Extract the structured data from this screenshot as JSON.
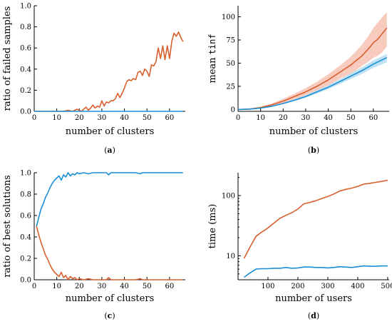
{
  "colors": {
    "orange": "#d95f2e",
    "blue": "#1a8fd6",
    "orange_band": "#f4b9a8",
    "blue_band": "#a8d8f0"
  },
  "chart_data": [
    {
      "id": "a",
      "type": "line",
      "panel_label": "a",
      "xlabel": "number of clusters",
      "ylabel": "ratio of failed samples",
      "xlim": [
        0,
        67
      ],
      "ylim": [
        0,
        1.0
      ],
      "xticks": [
        0,
        10,
        20,
        30,
        40,
        50,
        60
      ],
      "yticks": [
        0,
        0.2,
        0.4,
        0.6,
        0.8,
        1.0
      ],
      "ytick_labels": [
        "0.0",
        "0.2",
        "0.4",
        "0.6",
        "0.8",
        "1.0"
      ],
      "series": [
        {
          "color": "orange",
          "x": [
            0,
            13,
            15,
            17,
            19,
            21,
            22,
            23,
            24,
            25,
            26,
            27,
            28,
            29,
            30,
            31,
            32,
            33,
            34,
            35,
            36,
            37,
            38,
            39,
            40,
            41,
            42,
            43,
            44,
            45,
            46,
            47,
            48,
            49,
            50,
            51,
            52,
            53,
            54,
            55,
            56,
            57,
            58,
            59,
            60,
            61,
            62,
            63,
            64,
            65,
            66
          ],
          "y": [
            0,
            0,
            0.01,
            0.0,
            0.02,
            0.0,
            0.02,
            0.04,
            0.01,
            0.03,
            0.06,
            0.03,
            0.05,
            0.04,
            0.1,
            0.05,
            0.09,
            0.08,
            0.1,
            0.1,
            0.12,
            0.17,
            0.13,
            0.17,
            0.22,
            0.28,
            0.3,
            0.29,
            0.31,
            0.3,
            0.37,
            0.38,
            0.34,
            0.4,
            0.38,
            0.33,
            0.44,
            0.43,
            0.47,
            0.6,
            0.5,
            0.62,
            0.49,
            0.62,
            0.5,
            0.66,
            0.74,
            0.71,
            0.75,
            0.7,
            0.66
          ]
        },
        {
          "color": "blue",
          "x": [
            0,
            66
          ],
          "y": [
            0,
            0
          ]
        }
      ]
    },
    {
      "id": "b",
      "type": "line",
      "panel_label": "b",
      "xlabel": "number of clusters",
      "ylabel": "mean tinf",
      "xlim": [
        0,
        67
      ],
      "ylim": [
        -2,
        112
      ],
      "xticks": [
        0,
        10,
        20,
        30,
        40,
        50,
        60
      ],
      "yticks": [
        0,
        25,
        50,
        75,
        100
      ],
      "series": [
        {
          "color": "orange",
          "x": [
            0,
            5,
            10,
            15,
            20,
            25,
            30,
            35,
            40,
            45,
            50,
            52,
            55,
            58,
            60,
            62,
            64,
            66
          ],
          "y": [
            0,
            0.5,
            2,
            5,
            9,
            14,
            19,
            25,
            32,
            40,
            48,
            52,
            58,
            66,
            72,
            76,
            82,
            88
          ],
          "band_lower": [
            0,
            0.3,
            1.5,
            4,
            7,
            11,
            15,
            20,
            26,
            33,
            39,
            42,
            47,
            52,
            56,
            58,
            62,
            68
          ],
          "band_upper": [
            0,
            0.8,
            3,
            6.5,
            11.5,
            17,
            23,
            30,
            38,
            47,
            57,
            62,
            70,
            80,
            88,
            94,
            100,
            105
          ]
        },
        {
          "color": "blue",
          "x": [
            0,
            5,
            10,
            15,
            20,
            25,
            30,
            35,
            40,
            45,
            50,
            55,
            60,
            66
          ],
          "y": [
            0,
            0.4,
            1.5,
            3.5,
            6.5,
            10,
            14,
            19,
            24,
            30,
            36,
            42,
            49,
            56
          ],
          "band_lower": [
            0,
            0.3,
            1.2,
            3,
            5.8,
            9,
            12.7,
            17.3,
            22,
            27.5,
            33,
            38.5,
            45,
            51
          ],
          "band_upper": [
            0,
            0.5,
            1.8,
            4,
            7.2,
            11,
            15.3,
            20.7,
            26,
            32.5,
            39,
            45.5,
            53,
            60
          ]
        }
      ]
    },
    {
      "id": "c",
      "type": "line",
      "panel_label": "c",
      "xlabel": "number of clusters",
      "ylabel": "ratio of best solutions",
      "xlim": [
        0,
        67
      ],
      "ylim": [
        0,
        1.0
      ],
      "xticks": [
        0,
        10,
        20,
        30,
        40,
        50,
        60
      ],
      "yticks": [
        0,
        0.2,
        0.4,
        0.6,
        0.8,
        1.0
      ],
      "ytick_labels": [
        "0.0",
        "0.2",
        "0.4",
        "0.6",
        "0.8",
        "1.0"
      ],
      "series": [
        {
          "color": "blue",
          "x": [
            1,
            2,
            3,
            4,
            5,
            6,
            7,
            8,
            9,
            10,
            11,
            12,
            13,
            14,
            15,
            16,
            17,
            18,
            19,
            20,
            22,
            24,
            26,
            28,
            30,
            32,
            33,
            34,
            36,
            40,
            45,
            47,
            48,
            50,
            55,
            60,
            66
          ],
          "y": [
            0.5,
            0.58,
            0.66,
            0.71,
            0.77,
            0.81,
            0.86,
            0.9,
            0.93,
            0.95,
            0.97,
            0.93,
            0.98,
            0.96,
            1.0,
            0.97,
            0.99,
            0.98,
            1.0,
            0.99,
            1.0,
            0.99,
            1.0,
            1.0,
            1.0,
            1.0,
            0.98,
            1.0,
            1.0,
            1.0,
            1.0,
            0.99,
            1.0,
            1.0,
            1.0,
            1.0,
            1.0
          ]
        },
        {
          "color": "orange",
          "x": [
            1,
            2,
            3,
            4,
            5,
            6,
            7,
            8,
            9,
            10,
            11,
            12,
            13,
            14,
            15,
            16,
            17,
            18,
            19,
            20,
            22,
            24,
            26,
            28,
            30,
            32,
            33,
            34,
            36,
            40,
            45,
            47,
            48,
            50,
            55,
            60,
            66
          ],
          "y": [
            0.5,
            0.42,
            0.35,
            0.29,
            0.23,
            0.19,
            0.14,
            0.1,
            0.07,
            0.05,
            0.03,
            0.07,
            0.02,
            0.04,
            0.0,
            0.03,
            0.01,
            0.02,
            0.0,
            0.01,
            0.0,
            0.01,
            0.0,
            0.0,
            0.0,
            0.0,
            0.02,
            0.0,
            0.0,
            0.0,
            0.0,
            0.01,
            0.0,
            0.0,
            0.0,
            0.0,
            0.0
          ]
        }
      ]
    },
    {
      "id": "d",
      "type": "line",
      "panel_label": "d",
      "xlabel": "number of users",
      "ylabel": "time (ms)",
      "xscale": "log-y",
      "xlim": [
        0,
        505
      ],
      "ylim": [
        4,
        240
      ],
      "xticks": [
        100,
        200,
        300,
        400,
        500
      ],
      "yticks": [
        10,
        100
      ],
      "series": [
        {
          "color": "orange",
          "x": [
            20,
            40,
            60,
            80,
            100,
            120,
            140,
            160,
            180,
            200,
            220,
            240,
            260,
            280,
            300,
            320,
            340,
            360,
            380,
            400,
            420,
            440,
            460,
            480,
            500
          ],
          "y": [
            9,
            14,
            21,
            25,
            29,
            35,
            42,
            47,
            52,
            60,
            73,
            77,
            82,
            89,
            97,
            106,
            119,
            127,
            133,
            142,
            155,
            160,
            166,
            172,
            180
          ]
        },
        {
          "color": "blue",
          "x": [
            20,
            40,
            60,
            80,
            100,
            120,
            140,
            160,
            180,
            200,
            220,
            240,
            260,
            280,
            300,
            320,
            340,
            360,
            380,
            400,
            420,
            440,
            460,
            480,
            500
          ],
          "y": [
            4.4,
            5.2,
            6.0,
            6.1,
            6.1,
            6.2,
            6.2,
            6.4,
            6.2,
            6.3,
            6.5,
            6.5,
            6.4,
            6.4,
            6.3,
            6.4,
            6.6,
            6.5,
            6.4,
            6.6,
            6.8,
            6.7,
            6.7,
            6.8,
            6.8
          ]
        }
      ]
    }
  ]
}
